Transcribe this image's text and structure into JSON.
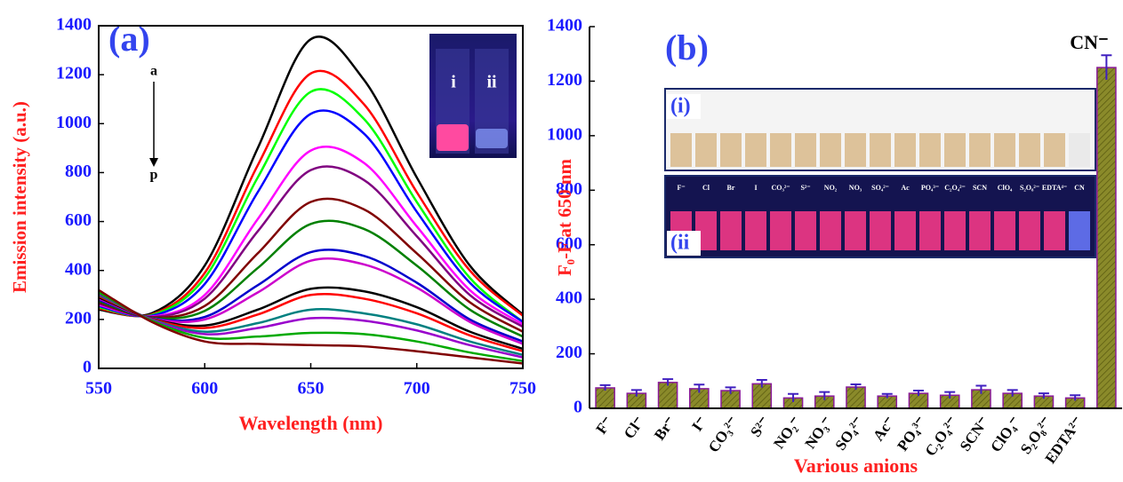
{
  "chart_data": [
    {
      "type": "line",
      "panel_label": "(a)",
      "x_label": "Wavelength (nm)",
      "y_label": "Emission intensity (a.u.)",
      "x": [
        550,
        575,
        600,
        625,
        650,
        675,
        700,
        725,
        750
      ],
      "xlim": [
        550,
        750
      ],
      "xticks": [
        550,
        600,
        650,
        700,
        750
      ],
      "ylim": [
        0,
        1400
      ],
      "yticks": [
        0,
        200,
        400,
        600,
        800,
        1000,
        1200,
        1400
      ],
      "series": [
        {
          "color": "#000000",
          "values": [
            240,
            225,
            420,
            900,
            1345,
            1180,
            780,
            420,
            220
          ]
        },
        {
          "color": "#ff0000",
          "values": [
            245,
            220,
            390,
            830,
            1205,
            1080,
            720,
            400,
            215
          ]
        },
        {
          "color": "#00ff00",
          "values": [
            250,
            218,
            370,
            780,
            1130,
            1020,
            680,
            370,
            190
          ]
        },
        {
          "color": "#0000ff",
          "values": [
            255,
            215,
            345,
            720,
            1040,
            960,
            640,
            350,
            190
          ]
        },
        {
          "color": "#ff00ff",
          "values": [
            260,
            212,
            300,
            610,
            890,
            840,
            580,
            320,
            180
          ]
        },
        {
          "color": "#800080",
          "values": [
            265,
            210,
            285,
            560,
            810,
            770,
            540,
            300,
            170
          ]
        },
        {
          "color": "#800000",
          "values": [
            270,
            208,
            255,
            470,
            680,
            650,
            470,
            270,
            150
          ]
        },
        {
          "color": "#008000",
          "values": [
            275,
            206,
            235,
            410,
            590,
            570,
            420,
            240,
            130
          ]
        },
        {
          "color": "#0000cc",
          "values": [
            280,
            205,
            210,
            340,
            475,
            460,
            350,
            200,
            110
          ]
        },
        {
          "color": "#cc00cc",
          "values": [
            285,
            204,
            200,
            310,
            440,
            425,
            330,
            190,
            100
          ]
        },
        {
          "color": "#000000",
          "values": [
            290,
            203,
            175,
            240,
            325,
            315,
            250,
            150,
            80
          ]
        },
        {
          "color": "#ff0000",
          "values": [
            295,
            202,
            165,
            220,
            300,
            285,
            225,
            135,
            70
          ]
        },
        {
          "color": "#008080",
          "values": [
            300,
            200,
            150,
            185,
            240,
            225,
            180,
            110,
            55
          ]
        },
        {
          "color": "#9900cc",
          "values": [
            305,
            198,
            140,
            165,
            205,
            195,
            155,
            95,
            45
          ]
        },
        {
          "color": "#00aa00",
          "values": [
            310,
            195,
            125,
            130,
            145,
            140,
            110,
            65,
            30
          ]
        },
        {
          "color": "#800000",
          "values": [
            320,
            190,
            110,
            100,
            95,
            90,
            70,
            45,
            20
          ]
        }
      ],
      "annotations": [
        "a",
        "p"
      ],
      "inset_labels": [
        "i",
        "ii"
      ]
    },
    {
      "type": "bar",
      "panel_label": "(b)",
      "x_label": "Various anions",
      "y_label": "F₀-F at 650 nm",
      "categories": [
        "F⁻",
        "Cl⁻",
        "Br⁻",
        "I⁻",
        "CO₃²⁻",
        "S²⁻",
        "NO₂⁻",
        "NO₃⁻",
        "SO₄²⁻",
        "Ac⁻",
        "PO₄³⁻",
        "C₂O₄²⁻",
        "SCN⁻",
        "ClO₄⁻",
        "S₂O₈²⁻",
        "EDTA²⁻",
        null
      ],
      "values": [
        75,
        55,
        95,
        72,
        65,
        90,
        38,
        45,
        78,
        45,
        55,
        48,
        68,
        55,
        45,
        38,
        1250
      ],
      "errors": [
        10,
        12,
        12,
        15,
        12,
        14,
        15,
        15,
        10,
        8,
        10,
        12,
        15,
        12,
        10,
        10,
        45
      ],
      "color": "#8a8a2a",
      "ylim": [
        0,
        1400
      ],
      "yticks": [
        0,
        200,
        400,
        600,
        800,
        1000,
        1200,
        1400
      ],
      "annotations": [
        "CN⁻"
      ],
      "inset_labels": [
        "(i)",
        "(ii"
      ],
      "well_labels": [
        "F⁻",
        "Cl",
        "Br",
        "I",
        "CO₃²⁻",
        "S²⁻",
        "NO₂",
        "NO₃",
        "SO₄²⁻",
        "Ac",
        "PO₄³⁻",
        "C₂O₄²⁻",
        "SCN",
        "ClO₄",
        "S₂O₈²⁻",
        "EDTA⁴⁻",
        "CN"
      ]
    }
  ]
}
